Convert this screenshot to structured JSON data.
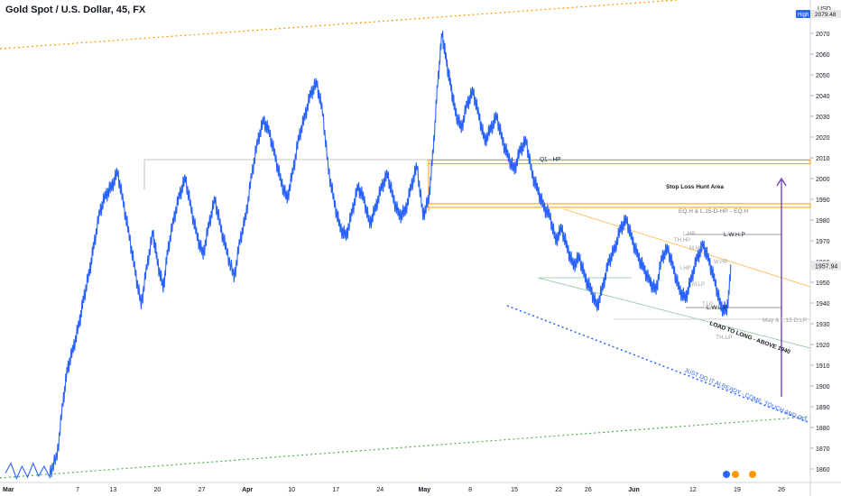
{
  "header": {
    "title": "Gold Spot / U.S. Dollar, 45, FX",
    "currency": "USD",
    "high_label": "High",
    "high_value": "2079.48",
    "last_value": "1957.94"
  },
  "colors": {
    "candles": "#2962ff",
    "orange_level": "#ff9800",
    "gray_line": "#9e9e9e",
    "arrow": "#673ab7",
    "blue_dotted": "#2962ff",
    "green_dotted": "#4caf50",
    "last_price_badge": "#e8e8e8"
  },
  "chart_data": {
    "type": "line",
    "ylim": [
      1855,
      2085
    ],
    "y_ticks": [
      1860,
      1870,
      1880,
      1890,
      1900,
      1910,
      1920,
      1930,
      1940,
      1950,
      1960,
      1970,
      1980,
      1990,
      2000,
      2010,
      2020,
      2030,
      2040,
      2050,
      2060,
      2070
    ],
    "x_tick_labels": [
      {
        "label": "Mar",
        "x": 0.2,
        "bold": true
      },
      {
        "label": "7",
        "x": 4.9
      },
      {
        "label": "13",
        "x": 7.3
      },
      {
        "label": "20",
        "x": 10.3
      },
      {
        "label": "27",
        "x": 13.3
      },
      {
        "label": "Apr",
        "x": 16.4,
        "bold": true
      },
      {
        "label": "10",
        "x": 19.4
      },
      {
        "label": "17",
        "x": 22.4
      },
      {
        "label": "24",
        "x": 25.4
      },
      {
        "label": "May",
        "x": 28.4,
        "bold": true
      },
      {
        "label": "8",
        "x": 31.5
      },
      {
        "label": "15",
        "x": 34.5
      },
      {
        "label": "22",
        "x": 37.5
      },
      {
        "label": "26",
        "x": 39.5
      },
      {
        "label": "Jun",
        "x": 42.6,
        "bold": true
      },
      {
        "label": "12",
        "x": 46.6
      },
      {
        "label": "19",
        "x": 49.6
      },
      {
        "label": "26",
        "x": 52.6
      }
    ],
    "series": [
      {
        "x": [
          0,
          3,
          3.5,
          3.9,
          4.2,
          4.6,
          5,
          5.3,
          5.7,
          6,
          6.4,
          6.8,
          7.2,
          7.6,
          8,
          8.4,
          8.8,
          9.2,
          9.6,
          10,
          10.3,
          10.7,
          11,
          11.4,
          11.8,
          12.2,
          12.6,
          13,
          13.4,
          13.8,
          14.2,
          14.6,
          15,
          15.5,
          15.9,
          16.3,
          16.7,
          17.1,
          17.5,
          17.9,
          18.3,
          18.7,
          19.1,
          19.5,
          19.9,
          20.3,
          20.7,
          21.1,
          21.5,
          21.9,
          22.3,
          22.7,
          23.1,
          23.5,
          23.9,
          24.3,
          24.7,
          25.1,
          25.5,
          25.9,
          26.3,
          26.7,
          27.1,
          27.5,
          27.9,
          28.3,
          28.7,
          29,
          29.3,
          29.6,
          29.9,
          30.2,
          30.5,
          30.9,
          31.3,
          31.7,
          32.1,
          32.5,
          32.9,
          33.3,
          33.7,
          34.1,
          34.5,
          34.9,
          35.3,
          35.7,
          36.1,
          36.5,
          36.9,
          37.3,
          37.7,
          38.1,
          38.5,
          38.9,
          39.3,
          39.7,
          40.1,
          40.5,
          40.9,
          41.3,
          41.7,
          42.1,
          42.5,
          42.9,
          43.3,
          43.7,
          44.1,
          44.5,
          44.9,
          45.3,
          45.7,
          46.1,
          46.5,
          46.9,
          47.3,
          47.7,
          48.1,
          48.5,
          48.9,
          49.2
        ],
        "values": [
          1860,
          1858,
          1866,
          1892,
          1908,
          1918,
          1930,
          1942,
          1955,
          1968,
          1984,
          1992,
          1996,
          2003,
          1988,
          1972,
          1955,
          1939,
          1958,
          1974,
          1960,
          1947,
          1965,
          1980,
          1992,
          2000,
          1985,
          1972,
          1963,
          1978,
          1990,
          1976,
          1965,
          1952,
          1970,
          1982,
          2002,
          2018,
          2028,
          2022,
          2010,
          1998,
          1990,
          2004,
          2020,
          2030,
          2041,
          2046,
          2032,
          2004,
          1988,
          1976,
          1972,
          1984,
          1996,
          1990,
          1978,
          1986,
          1996,
          2002,
          1990,
          1982,
          1984,
          1996,
          2006,
          1982,
          1990,
          2014,
          2046,
          2070,
          2056,
          2044,
          2032,
          2024,
          2036,
          2042,
          2030,
          2018,
          2024,
          2030,
          2018,
          2010,
          2004,
          2014,
          2018,
          2002,
          1994,
          1986,
          1982,
          1970,
          1976,
          1966,
          1958,
          1962,
          1952,
          1946,
          1938,
          1948,
          1960,
          1966,
          1976,
          1980,
          1970,
          1962,
          1956,
          1950,
          1946,
          1962,
          1966,
          1956,
          1946,
          1942,
          1952,
          1962,
          1968,
          1960,
          1950,
          1938,
          1936,
          1958
        ]
      }
    ],
    "levels": [
      {
        "name": "q1-hp-level",
        "value": 2008,
        "label": "Q1 - HP"
      },
      {
        "name": "eqh-level",
        "value": 1987,
        "label": "EQ.H &  L.15-D-HP.   -  EQ.H"
      }
    ],
    "annotations": {
      "stop_loss": "Stop Loss Hunt Area",
      "lwhp": "L.W.H.P",
      "lwlp": "L.W.L.P",
      "load_long": "LOAD TO LONG - ABOVE 1940",
      "just_do_it": "JUST DO IT ALREADY - COME, TOUCH AND GO",
      "may_dlp": "May & L.15 D.LP.",
      "thlp": "TH.LP",
      "thhp": "TH.HP",
      "ihp": "I.HP",
      "mhp": "M.HP",
      "whp": "W.HP",
      "lhp": "L.HP",
      "mlp": "M.LP",
      "tlp": "T.LP"
    }
  }
}
